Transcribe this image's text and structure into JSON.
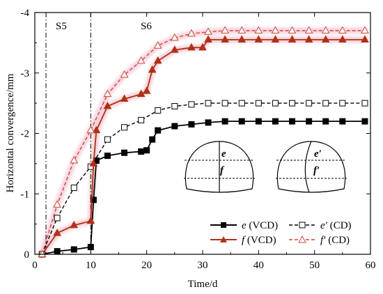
{
  "chart_data": {
    "type": "line",
    "xlabel": "Time/d",
    "ylabel": "Horizontal convergence/mm",
    "xlim": [
      0,
      60
    ],
    "ylim": [
      0,
      -4
    ],
    "x_ticks": [
      "0",
      "10",
      "20",
      "30",
      "40",
      "50",
      "60"
    ],
    "y_ticks": [
      "0",
      "-1",
      "-2",
      "-3",
      "-4"
    ],
    "grid": false,
    "legend_position": "bottom-right",
    "stage_lines": [
      {
        "label": "S5",
        "x": 2
      },
      {
        "label": "S6",
        "x": 10
      }
    ],
    "series": [
      {
        "name": "e (VCD)",
        "symbol": "e",
        "suffix": " (VCD)",
        "color": "#000000",
        "dash": "solid",
        "marker": "square",
        "marker_fill": "#000000",
        "x": [
          1.3,
          4,
          7,
          10,
          10.5,
          11,
          13,
          16,
          19,
          20,
          21,
          22,
          25,
          28,
          31,
          34,
          37,
          40,
          43,
          46,
          49,
          52,
          55,
          59
        ],
        "y": [
          0,
          -0.05,
          -0.08,
          -0.12,
          -0.9,
          -1.55,
          -1.63,
          -1.68,
          -1.7,
          -1.72,
          -1.9,
          -2.05,
          -2.12,
          -2.15,
          -2.18,
          -2.2,
          -2.2,
          -2.2,
          -2.2,
          -2.2,
          -2.2,
          -2.2,
          -2.2,
          -2.2
        ]
      },
      {
        "name": "e′ (CD)",
        "symbol": "e′",
        "suffix": " (CD)",
        "color": "#000000",
        "dash": "dash",
        "marker": "square",
        "marker_fill": "#ffffff",
        "x": [
          1.3,
          4,
          7,
          10,
          13,
          16,
          19,
          22,
          25,
          28,
          31,
          34,
          37,
          40,
          43,
          46,
          49,
          52,
          55,
          59
        ],
        "y": [
          0,
          -0.6,
          -1.1,
          -1.45,
          -1.9,
          -2.1,
          -2.22,
          -2.38,
          -2.45,
          -2.48,
          -2.5,
          -2.5,
          -2.5,
          -2.5,
          -2.5,
          -2.5,
          -2.5,
          -2.5,
          -2.5,
          -2.5
        ]
      },
      {
        "name": "f (VCD)",
        "symbol": "f",
        "suffix": " (VCD)",
        "color": "#b03018",
        "dash": "solid",
        "marker": "triangle",
        "marker_fill": "#b03018",
        "x": [
          1.3,
          4,
          7,
          10,
          10.5,
          11,
          13,
          16,
          19,
          20,
          21,
          22,
          25,
          28,
          30,
          31,
          34,
          37,
          40,
          43,
          46,
          49,
          52,
          55,
          59
        ],
        "y": [
          0,
          -0.35,
          -0.48,
          -0.55,
          -1.5,
          -2.05,
          -2.45,
          -2.57,
          -2.65,
          -2.7,
          -3.05,
          -3.2,
          -3.38,
          -3.42,
          -3.42,
          -3.55,
          -3.55,
          -3.55,
          -3.55,
          -3.55,
          -3.55,
          -3.55,
          -3.55,
          -3.55,
          -3.55
        ]
      },
      {
        "name": "f′ (CD)",
        "symbol": "f′",
        "suffix": " (CD)",
        "color": "#c84a38",
        "dash": "dash",
        "marker": "triangle",
        "marker_fill": "#ffffff",
        "x": [
          1.3,
          4,
          7,
          10,
          13,
          16,
          19,
          22,
          25,
          28,
          31,
          34,
          37,
          40,
          43,
          46,
          49,
          52,
          55,
          59
        ],
        "y": [
          0,
          -0.82,
          -1.55,
          -2.05,
          -2.65,
          -2.97,
          -3.2,
          -3.45,
          -3.58,
          -3.65,
          -3.68,
          -3.7,
          -3.7,
          -3.7,
          -3.7,
          -3.7,
          -3.7,
          -3.7,
          -3.7,
          -3.7
        ]
      }
    ],
    "stage_labels": [
      "S5",
      "S6"
    ],
    "inset_labels": {
      "left_top": "e",
      "left_bottom": "f",
      "right_top": "e′",
      "right_bottom": "f′"
    }
  }
}
